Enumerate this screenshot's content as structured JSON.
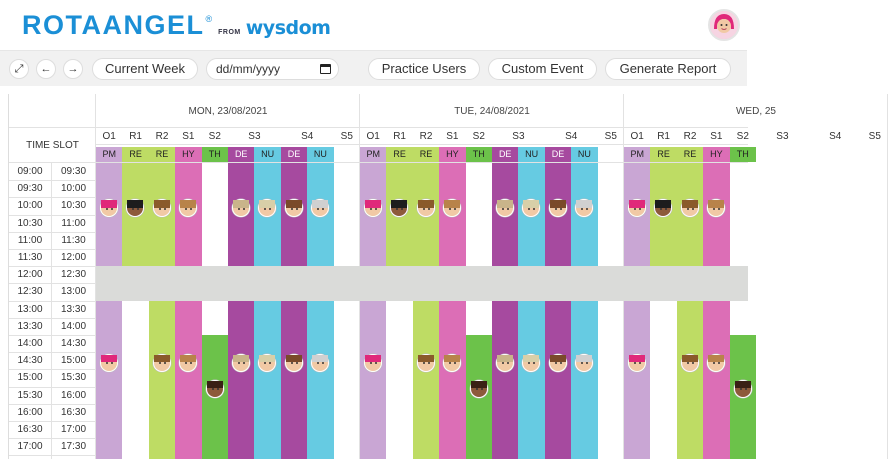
{
  "app": {
    "logo_main": "ROTAANGEL",
    "logo_reg": "®",
    "logo_from": "FROM",
    "logo_brand": "wysdom"
  },
  "toolbar": {
    "expand_icon": "expand-icon",
    "prev_icon": "arrow-left-icon",
    "next_icon": "arrow-right-icon",
    "current_week": "Current Week",
    "date_placeholder": "dd/mm/yyyy",
    "practice_users": "Practice Users",
    "custom_event": "Custom Event",
    "generate_report": "Generate Report"
  },
  "grid": {
    "time_slot_header": "TIME SLOT",
    "days": [
      {
        "label": "MON, 23/08/2021"
      },
      {
        "label": "TUE, 24/08/2021"
      },
      {
        "label": "WED, 25"
      }
    ],
    "slots": [
      [
        "09:00",
        "09:30"
      ],
      [
        "09:30",
        "10:00"
      ],
      [
        "10:00",
        "10:30"
      ],
      [
        "10:30",
        "11:00"
      ],
      [
        "11:00",
        "11:30"
      ],
      [
        "11:30",
        "12:00"
      ],
      [
        "12:00",
        "12:30"
      ],
      [
        "12:30",
        "13:00"
      ],
      [
        "13:00",
        "13:30"
      ],
      [
        "13:30",
        "14:00"
      ],
      [
        "14:00",
        "14:30"
      ],
      [
        "14:30",
        "15:00"
      ],
      [
        "15:00",
        "15:30"
      ],
      [
        "15:30",
        "16:00"
      ],
      [
        "16:00",
        "16:30"
      ],
      [
        "16:30",
        "17:00"
      ],
      [
        "17:00",
        "17:30"
      ]
    ],
    "rooms": [
      "O1",
      "R1",
      "R2",
      "S1",
      "S2",
      "S3",
      "S4",
      "S5"
    ],
    "roles": [
      {
        "code": "PM",
        "color": "#c9a6d4"
      },
      {
        "code": "RE",
        "color": "#bedc64"
      },
      {
        "code": "RE",
        "color": "#bedc64"
      },
      {
        "code": "HY",
        "color": "#dc6eb6"
      },
      {
        "code": "TH",
        "color": "#6cc24a"
      },
      {
        "code": "DE",
        "color": "#a64a9f"
      },
      {
        "code": "NU",
        "color": "#66cbe2"
      },
      {
        "code": "DE",
        "color": "#a64a9f"
      },
      {
        "code": "NU",
        "color": "#66cbe2"
      }
    ],
    "wed_roles": [
      "PM",
      "RE",
      "RE",
      "HY",
      "TH"
    ],
    "colors": {
      "pm": "#c9a6d4",
      "re": "#bedc64",
      "hy": "#dc6eb6",
      "th": "#6cc24a",
      "de": "#a64a9f",
      "nu": "#66cbe2",
      "lunch": "#dadbd9"
    }
  }
}
